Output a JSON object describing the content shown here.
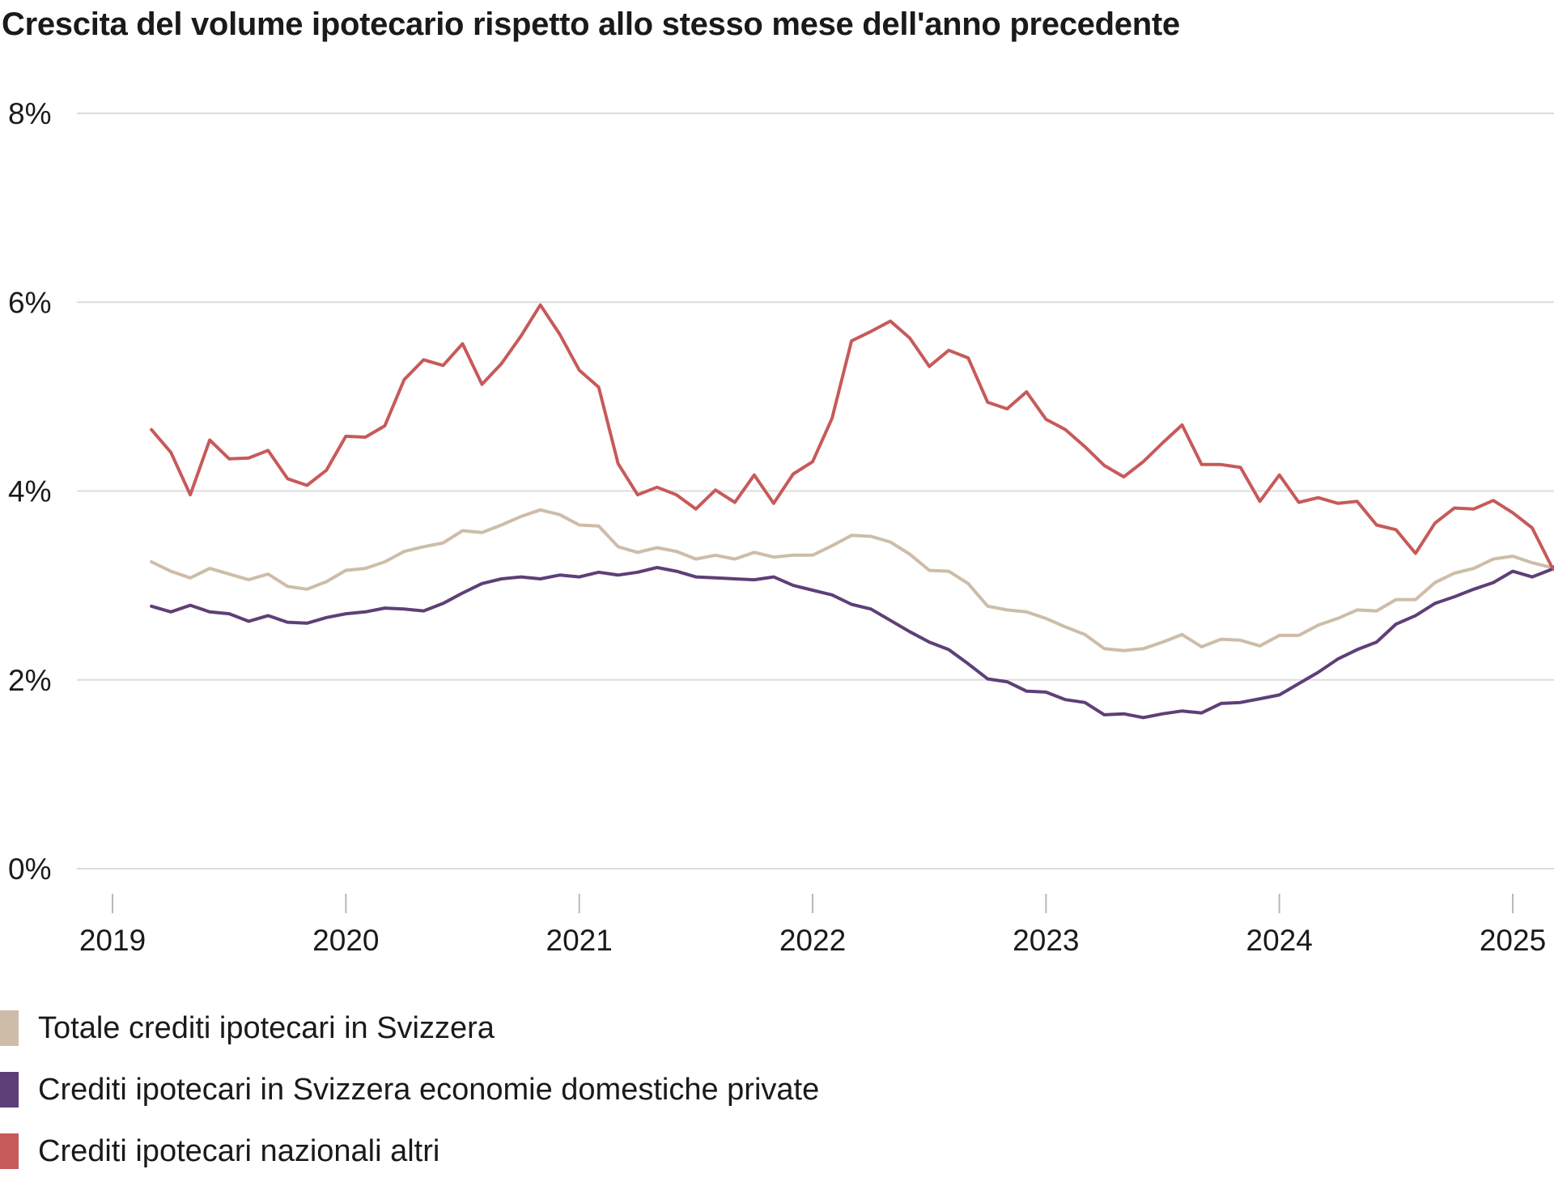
{
  "chart_data": {
    "type": "line",
    "title": "Crescita del volume ipotecario rispetto allo stesso mese dell'anno precedente",
    "xlabel": "",
    "ylabel": "",
    "y_ticks": [
      0,
      2,
      4,
      6,
      8
    ],
    "y_tick_labels": [
      "0%",
      "2%",
      "4%",
      "6%",
      "8%"
    ],
    "ylim": [
      0,
      8
    ],
    "x_ticks": [
      2019,
      2020,
      2021,
      2022,
      2023,
      2024,
      2025
    ],
    "x_tick_labels": [
      "2019",
      "2020",
      "2021",
      "2022",
      "2023",
      "2024",
      "2025"
    ],
    "xlim": [
      2019,
      2025
    ],
    "x_start": "2019-03",
    "grid": true,
    "legend_position": "bottom-left",
    "series": [
      {
        "name": "Totale crediti ipotecari in Svizzera",
        "color": "#cdbda8",
        "values": [
          3.25,
          3.15,
          3.08,
          3.18,
          3.12,
          3.06,
          3.12,
          2.99,
          2.96,
          3.04,
          3.16,
          3.18,
          3.25,
          3.36,
          3.41,
          3.45,
          3.58,
          3.56,
          3.64,
          3.73,
          3.8,
          3.75,
          3.64,
          3.63,
          3.41,
          3.35,
          3.4,
          3.36,
          3.28,
          3.32,
          3.28,
          3.35,
          3.3,
          3.32,
          3.32,
          3.42,
          3.53,
          3.52,
          3.46,
          3.33,
          3.16,
          3.15,
          3.02,
          2.78,
          2.74,
          2.72,
          2.65,
          2.56,
          2.48,
          2.33,
          2.31,
          2.33,
          2.4,
          2.48,
          2.35,
          2.43,
          2.42,
          2.36,
          2.47,
          2.47,
          2.58,
          2.65,
          2.74,
          2.73,
          2.85,
          2.85,
          3.03,
          3.13,
          3.18,
          3.28,
          3.31,
          3.24,
          3.19,
          3.23
        ]
      },
      {
        "name": "Crediti ipotecari in Svizzera economie domestiche private",
        "color": "#5e3f77",
        "values": [
          2.78,
          2.72,
          2.79,
          2.72,
          2.7,
          2.62,
          2.68,
          2.61,
          2.6,
          2.66,
          2.7,
          2.72,
          2.76,
          2.75,
          2.73,
          2.81,
          2.92,
          3.02,
          3.07,
          3.09,
          3.07,
          3.11,
          3.09,
          3.14,
          3.11,
          3.14,
          3.19,
          3.15,
          3.09,
          3.08,
          3.07,
          3.06,
          3.09,
          3.0,
          2.95,
          2.9,
          2.8,
          2.75,
          2.63,
          2.51,
          2.4,
          2.32,
          2.17,
          2.01,
          1.98,
          1.88,
          1.87,
          1.79,
          1.76,
          1.63,
          1.64,
          1.6,
          1.64,
          1.67,
          1.65,
          1.75,
          1.76,
          1.8,
          1.84,
          1.96,
          2.08,
          2.22,
          2.32,
          2.4,
          2.59,
          2.68,
          2.81,
          2.88,
          2.96,
          3.03,
          3.15,
          3.09,
          3.17,
          3.36
        ]
      },
      {
        "name": "Crediti ipotecari nazionali altri",
        "color": "#c75a5a",
        "values": [
          4.65,
          4.41,
          3.96,
          4.54,
          4.34,
          4.35,
          4.43,
          4.13,
          4.06,
          4.22,
          4.58,
          4.57,
          4.69,
          5.18,
          5.39,
          5.33,
          5.56,
          5.13,
          5.35,
          5.64,
          5.97,
          5.66,
          5.28,
          5.1,
          4.29,
          3.96,
          4.04,
          3.96,
          3.81,
          4.01,
          3.88,
          4.17,
          3.87,
          4.18,
          4.31,
          4.77,
          5.59,
          5.69,
          5.8,
          5.62,
          5.32,
          5.49,
          5.41,
          4.94,
          4.87,
          5.05,
          4.76,
          4.65,
          4.47,
          4.27,
          4.15,
          4.31,
          4.51,
          4.7,
          4.28,
          4.28,
          4.25,
          3.89,
          4.17,
          3.88,
          3.93,
          3.87,
          3.89,
          3.64,
          3.59,
          3.34,
          3.66,
          3.82,
          3.81,
          3.9,
          3.77,
          3.61,
          3.2,
          2.97
        ]
      }
    ]
  }
}
